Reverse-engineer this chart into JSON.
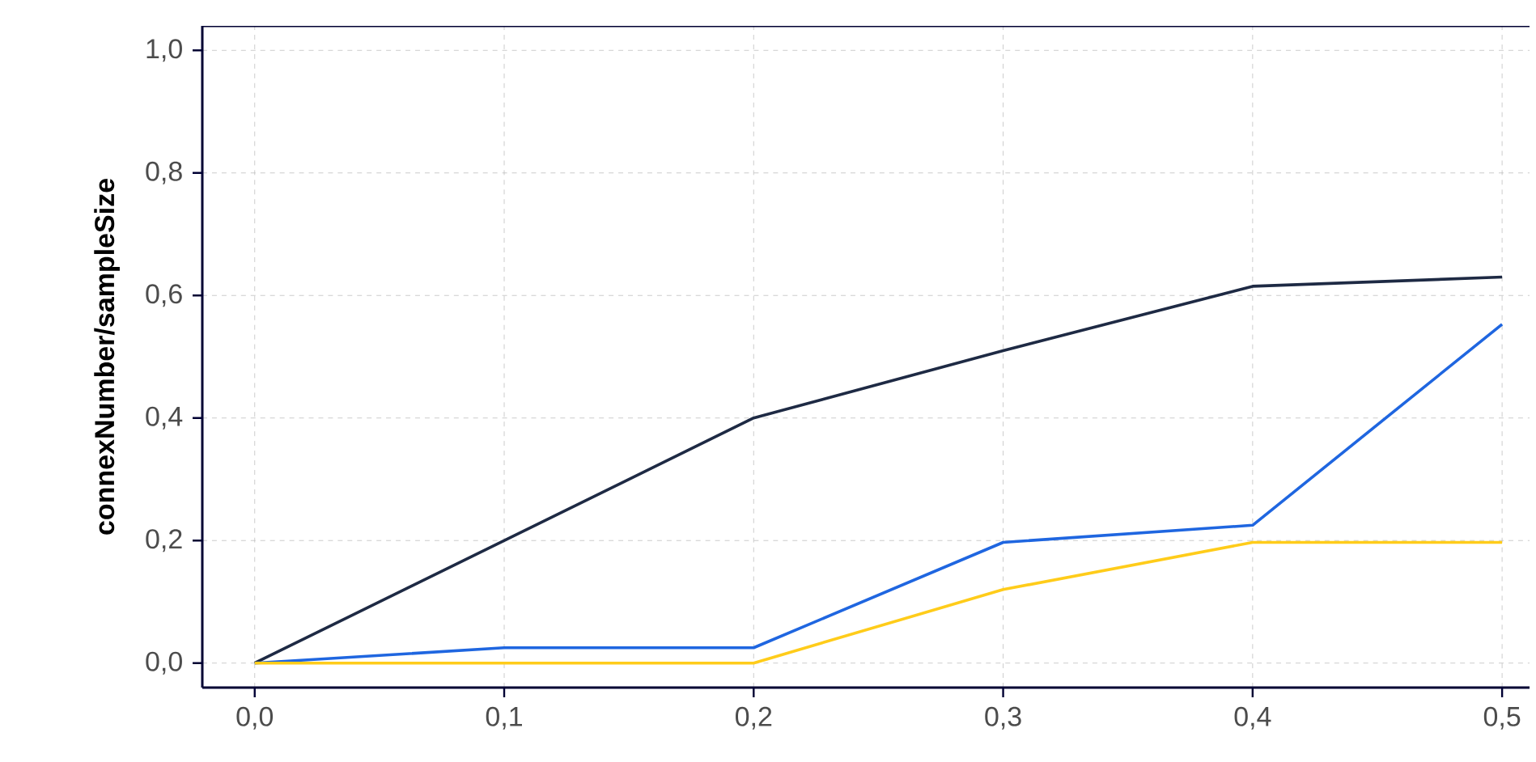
{
  "chart_data": {
    "type": "line",
    "ylabel": "connexNumber/sampleSize",
    "x": [
      0,
      0.1,
      0.2,
      0.3,
      0.4,
      0.5
    ],
    "series": [
      {
        "color": "#1e2a44",
        "values": [
          0,
          0.2,
          0.4,
          0.51,
          0.615,
          0.63
        ]
      },
      {
        "color": "#1f66e0",
        "values": [
          0,
          0.025,
          0.025,
          0.197,
          0.225,
          0.553
        ]
      },
      {
        "color": "#ffcc1a",
        "values": [
          0,
          0,
          0,
          0.12,
          0.197,
          0.197
        ]
      }
    ],
    "xlim": [
      -0.021,
      0.511
    ],
    "ylim": [
      -0.04,
      1.04
    ],
    "xticks": [
      {
        "value": 0,
        "label": "0,0"
      },
      {
        "value": 0.1,
        "label": "0,1"
      },
      {
        "value": 0.2,
        "label": "0,2"
      },
      {
        "value": 0.3,
        "label": "0,3"
      },
      {
        "value": 0.4,
        "label": "0,4"
      },
      {
        "value": 0.5,
        "label": "0,5"
      }
    ],
    "yticks": [
      {
        "value": 0,
        "label": "0,0"
      },
      {
        "value": 0.2,
        "label": "0,2"
      },
      {
        "value": 0.4,
        "label": "0,4"
      },
      {
        "value": 0.6,
        "label": "0,6"
      },
      {
        "value": 0.8,
        "label": "0,8"
      },
      {
        "value": 1.0,
        "label": "1,0"
      }
    ],
    "grid": true,
    "line_style": "solid"
  }
}
